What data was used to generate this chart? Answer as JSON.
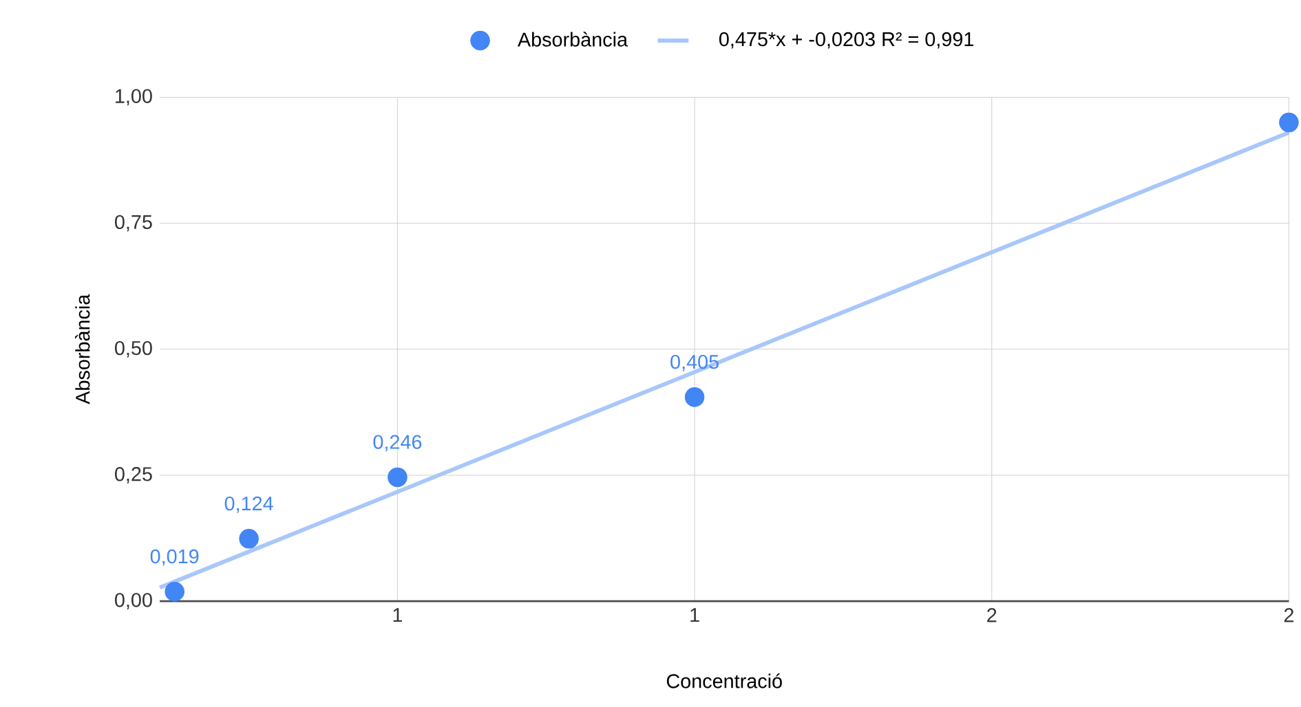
{
  "chart_data": {
    "type": "scatter",
    "xlabel": "Concentració",
    "ylabel": "Absorbància",
    "xlim": [
      0.1,
      2
    ],
    "ylim": [
      0,
      1
    ],
    "xticks": [
      {
        "value": 0.5,
        "label": "1"
      },
      {
        "value": 1,
        "label": "1"
      },
      {
        "value": 1.5,
        "label": "2"
      },
      {
        "value": 2,
        "label": "2"
      }
    ],
    "yticks": [
      {
        "value": 0,
        "label": "0,00"
      },
      {
        "value": 0.25,
        "label": "0,25"
      },
      {
        "value": 0.5,
        "label": "0,50"
      },
      {
        "value": 0.75,
        "label": "0,75"
      },
      {
        "value": 1,
        "label": "1,00"
      }
    ],
    "grid": true,
    "legend": "top",
    "series": [
      {
        "name": "Absorbància",
        "marker": "circle",
        "color": "#4285f4",
        "x": [
          0.125,
          0.25,
          0.5,
          1,
          2
        ],
        "values": [
          0.019,
          0.124,
          0.246,
          0.405,
          0.95
        ],
        "value_labels": [
          "0,019",
          "0,124",
          "0,246",
          "0,405",
          null
        ]
      },
      {
        "name": "0,475*x + -0,0203 R² = 0,991",
        "type": "line",
        "marker": "none",
        "color": "#a8c7fa",
        "line_style": "solid",
        "x": [
          0.1,
          2
        ],
        "values": [
          0.027,
          0.93
        ]
      }
    ]
  }
}
